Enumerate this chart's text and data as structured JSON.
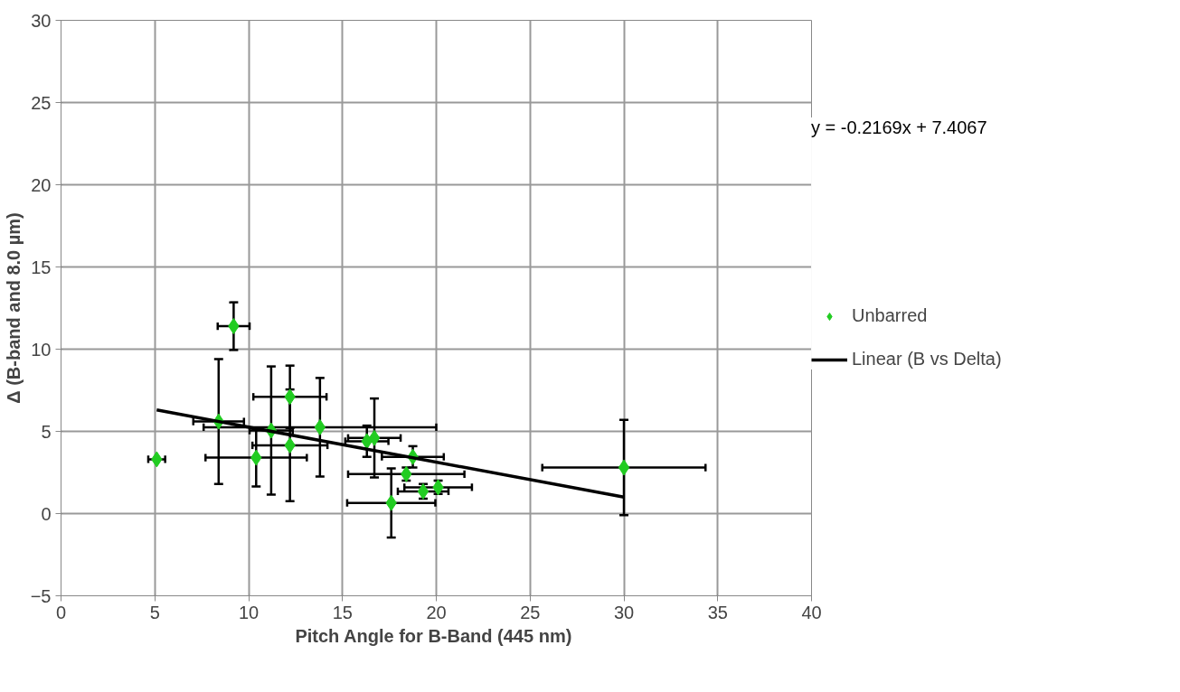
{
  "chart_data": {
    "type": "scatter",
    "xlabel": "Pitch Angle for B-Band  (445 nm)",
    "ylabel": "Δ (B-band and 8.0 µm)",
    "xlim": [
      0,
      40
    ],
    "ylim": [
      -5,
      30
    ],
    "xticks": [
      0,
      5,
      10,
      15,
      20,
      25,
      30,
      35,
      40
    ],
    "yticks": [
      -5,
      0,
      5,
      10,
      15,
      20,
      25,
      30
    ],
    "grid": true,
    "legend": "right",
    "annotations": [
      "y = -0.2169x + 7.4067"
    ],
    "series": [
      {
        "name": "Unbarred",
        "color": "#22cc22",
        "marker": "diamond",
        "x": [
          5.1,
          9.2,
          8.4,
          10.4,
          11.2,
          12.2,
          12.2,
          13.8,
          16.3,
          16.7,
          18.75,
          18.4,
          19.3,
          20.1,
          17.6,
          30.0
        ],
        "values": [
          3.3,
          11.4,
          5.6,
          3.4,
          5.05,
          7.1,
          4.15,
          5.25,
          4.4,
          4.6,
          3.45,
          2.4,
          1.35,
          1.6,
          0.65,
          2.8
        ],
        "errors": [
          null,
          1.45,
          3.8,
          1.75,
          3.9,
          1.9,
          3.4,
          3.0,
          0.95,
          2.4,
          0.65,
          0.4,
          0.45,
          0.4,
          2.1,
          2.9
        ],
        "xerrors": [
          0.45,
          0.85,
          1.35,
          2.7,
          1.15,
          1.95,
          2.0,
          6.2,
          1.15,
          1.4,
          1.65,
          3.1,
          1.35,
          1.8,
          2.35,
          4.35
        ]
      },
      {
        "name": "Linear (B vs Delta)",
        "color": "#000000",
        "type": "line",
        "x": [
          5.1,
          30.0
        ],
        "values": [
          6.3,
          1.0
        ]
      }
    ]
  }
}
